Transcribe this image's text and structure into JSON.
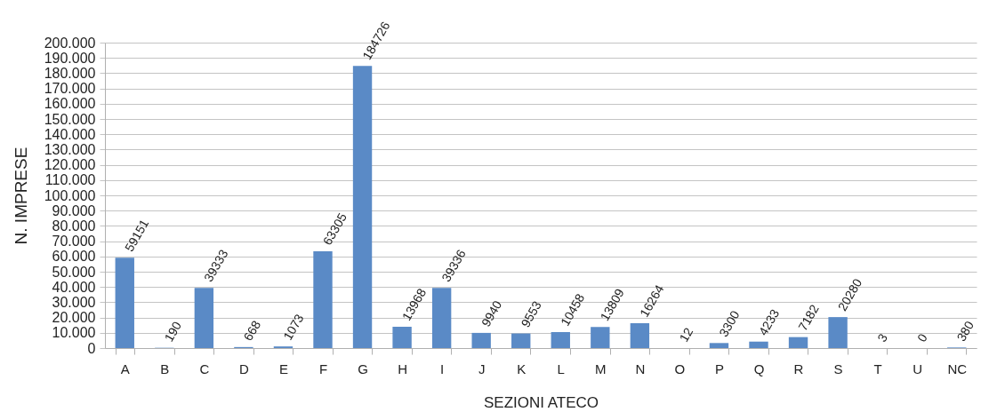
{
  "chart_data": {
    "type": "bar",
    "xlabel": "SEZIONI ATECO",
    "ylabel": "N. IMPRESE",
    "categories": [
      "A",
      "B",
      "C",
      "D",
      "E",
      "F",
      "G",
      "H",
      "I",
      "J",
      "K",
      "L",
      "M",
      "N",
      "O",
      "P",
      "Q",
      "R",
      "S",
      "T",
      "U",
      "NC"
    ],
    "values": [
      59151,
      190,
      39333,
      668,
      1073,
      63305,
      184726,
      13968,
      39336,
      9940,
      9553,
      10458,
      13809,
      16264,
      12,
      3300,
      4233,
      7182,
      20280,
      3,
      0,
      380
    ],
    "color": "#5a8ac6",
    "data_labels": true,
    "grid": "y",
    "ylim": [
      0,
      200000
    ],
    "yticks": [
      0,
      {
        "value": 10000,
        "label": "10.000"
      },
      {
        "value": 20000,
        "label": "20.000"
      },
      {
        "value": 30000,
        "label": "30.000"
      },
      {
        "value": 40000,
        "label": "40.000"
      },
      {
        "value": 50000,
        "label": "50.000"
      },
      {
        "value": 60000,
        "label": "60.000"
      },
      {
        "value": 70000,
        "label": "70.000"
      },
      {
        "value": 80000,
        "label": "80.000"
      },
      {
        "value": 90000,
        "label": "90.000"
      },
      {
        "value": 100000,
        "label": "100.000"
      },
      {
        "value": 110000,
        "label": "110.000"
      },
      {
        "value": 120000,
        "label": "120.000"
      },
      {
        "value": 130000,
        "label": "130.000"
      },
      {
        "value": 140000,
        "label": "140.000"
      },
      {
        "value": 150000,
        "label": "150.000"
      },
      {
        "value": 160000,
        "label": "160.000"
      },
      {
        "value": 170000,
        "label": "170.000"
      },
      {
        "value": 180000,
        "label": "180.000"
      },
      {
        "value": 190000,
        "label": "190.000"
      },
      {
        "value": 200000,
        "label": "200.000"
      }
    ]
  }
}
